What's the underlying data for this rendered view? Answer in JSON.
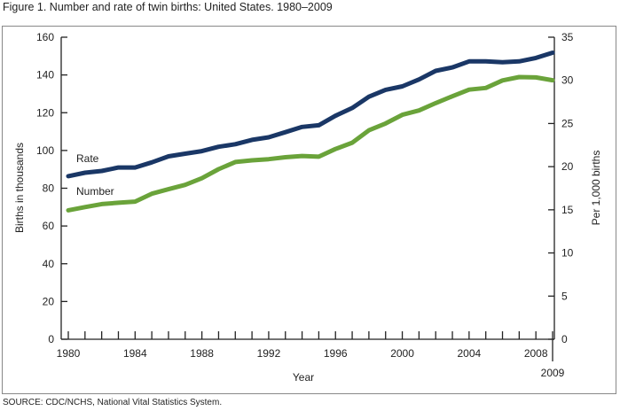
{
  "title": "Figure 1. Number and rate of twin births: United States. 1980–2009",
  "source": "SOURCE: CDC/NCHS, National Vital Statistics System.",
  "chart_data": {
    "type": "line",
    "title": "Figure 1. Number and rate of twin births: United States. 1980–2009",
    "xlabel": "Year",
    "ylabel": "Births in thousands",
    "y2label": "Per 1,000 births",
    "xlim": [
      1980,
      2009
    ],
    "ylim": [
      0,
      160
    ],
    "y2lim": [
      0,
      35
    ],
    "xticks": [
      "1980",
      "1984",
      "1988",
      "1992",
      "1996",
      "2000",
      "2004",
      "2008",
      "2009"
    ],
    "yticks": [
      "0",
      "20",
      "40",
      "60",
      "80",
      "100",
      "120",
      "140",
      "160"
    ],
    "y2ticks": [
      "0",
      "5",
      "10",
      "15",
      "20",
      "25",
      "30",
      "35"
    ],
    "grid": false,
    "x": [
      1980,
      1981,
      1982,
      1983,
      1984,
      1985,
      1986,
      1987,
      1988,
      1989,
      1990,
      1991,
      1992,
      1993,
      1994,
      1995,
      1996,
      1997,
      1998,
      1999,
      2000,
      2001,
      2002,
      2003,
      2004,
      2005,
      2006,
      2007,
      2008,
      2009
    ],
    "series": [
      {
        "name": "Rate",
        "axis": "right",
        "color": "#1a3766",
        "values": [
          18.9,
          19.3,
          19.5,
          19.9,
          19.9,
          20.5,
          21.2,
          21.5,
          21.8,
          22.3,
          22.6,
          23.1,
          23.4,
          24.0,
          24.6,
          24.8,
          25.9,
          26.8,
          28.1,
          28.9,
          29.3,
          30.1,
          31.1,
          31.5,
          32.2,
          32.2,
          32.1,
          32.2,
          32.6,
          33.2
        ]
      },
      {
        "name": "Number",
        "axis": "left",
        "color": "#6aa33a",
        "values": [
          68.3,
          70.0,
          71.6,
          72.3,
          72.9,
          77.1,
          79.5,
          81.8,
          85.3,
          90.1,
          93.9,
          94.8,
          95.4,
          96.4,
          97.1,
          96.7,
          100.8,
          104.1,
          110.7,
          114.3,
          118.9,
          121.2,
          125.1,
          128.7,
          132.2,
          133.1,
          137.1,
          138.9,
          138.7,
          137.2
        ]
      }
    ]
  }
}
